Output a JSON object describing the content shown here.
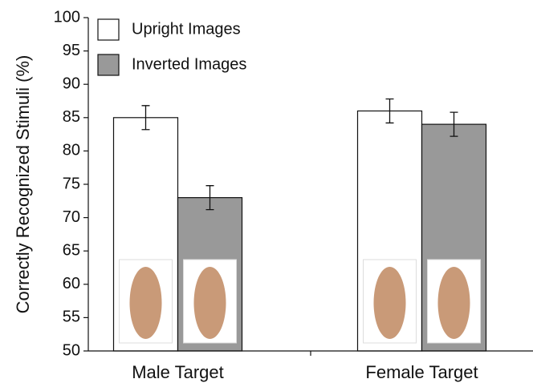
{
  "chart_data": {
    "type": "bar",
    "y_label": "Correctly Recognized Stimuli (%)",
    "categories": [
      "Male Target",
      "Female Target"
    ],
    "series": [
      {
        "name": "Upright Images",
        "color": "#ffffff",
        "values": [
          85,
          86
        ],
        "errors": [
          1.8,
          1.8
        ]
      },
      {
        "name": "Inverted Images",
        "color": "#999999",
        "values": [
          73,
          84
        ],
        "errors": [
          1.8,
          1.8
        ]
      }
    ],
    "ylim": [
      50,
      100
    ],
    "yticks": [
      50,
      55,
      60,
      65,
      70,
      75,
      80,
      85,
      90,
      95,
      100
    ],
    "legend": "upper left"
  }
}
